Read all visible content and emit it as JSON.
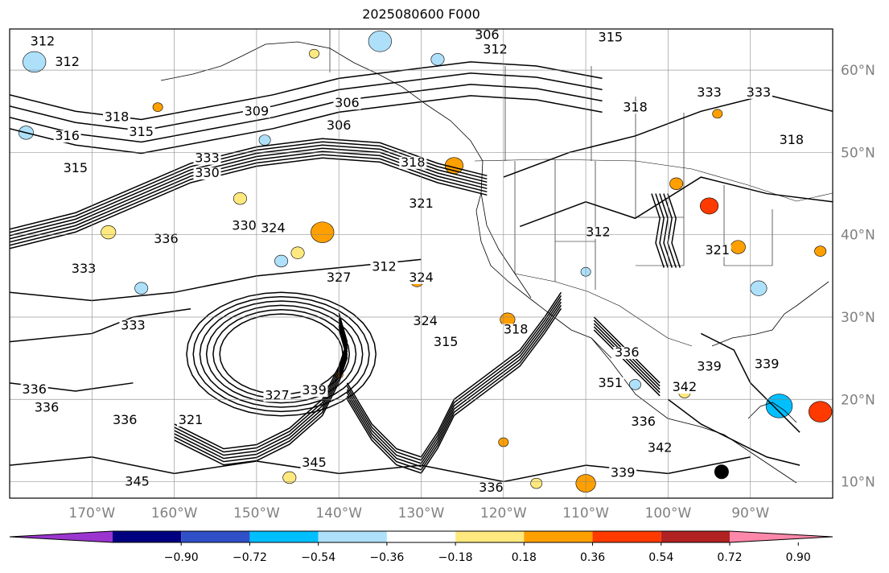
{
  "title": "2025080600 F000",
  "map": {
    "lon_range": [
      -180,
      -80
    ],
    "lat_range": [
      8,
      65
    ],
    "lat_ticks": [
      {
        "value": 10,
        "label": "10°N"
      },
      {
        "value": 20,
        "label": "20°N"
      },
      {
        "value": 30,
        "label": "30°N"
      },
      {
        "value": 40,
        "label": "40°N"
      },
      {
        "value": 50,
        "label": "50°N"
      },
      {
        "value": 60,
        "label": "60°N"
      }
    ],
    "lon_ticks": [
      {
        "value": -170,
        "label": "170°W"
      },
      {
        "value": -160,
        "label": "160°W"
      },
      {
        "value": -150,
        "label": "150°W"
      },
      {
        "value": -140,
        "label": "140°W"
      },
      {
        "value": -130,
        "label": "130°W"
      },
      {
        "value": -120,
        "label": "120°W"
      },
      {
        "value": -110,
        "label": "110°W"
      },
      {
        "value": -100,
        "label": "100°W"
      },
      {
        "value": -90,
        "label": "90°W"
      }
    ],
    "contour_labels": [
      {
        "text": "312",
        "lon": -176,
        "lat": 63
      },
      {
        "text": "312",
        "lon": -173,
        "lat": 60.5
      },
      {
        "text": "318",
        "lon": -167,
        "lat": 53.8
      },
      {
        "text": "315",
        "lon": -164,
        "lat": 52
      },
      {
        "text": "316",
        "lon": -173,
        "lat": 51.5
      },
      {
        "text": "315",
        "lon": -172,
        "lat": 47.6
      },
      {
        "text": "309",
        "lon": -150,
        "lat": 54.5
      },
      {
        "text": "306",
        "lon": -139,
        "lat": 55.5
      },
      {
        "text": "306",
        "lon": -140,
        "lat": 52.8
      },
      {
        "text": "318",
        "lon": -131,
        "lat": 48.3
      },
      {
        "text": "315",
        "lon": -107,
        "lat": 63.5
      },
      {
        "text": "312",
        "lon": -121,
        "lat": 62
      },
      {
        "text": "306",
        "lon": -122,
        "lat": 63.8
      },
      {
        "text": "318",
        "lon": -104,
        "lat": 55
      },
      {
        "text": "333",
        "lon": -95,
        "lat": 56.8
      },
      {
        "text": "333",
        "lon": -156,
        "lat": 48.8
      },
      {
        "text": "330",
        "lon": -156,
        "lat": 47
      },
      {
        "text": "330",
        "lon": -151.5,
        "lat": 40.6
      },
      {
        "text": "324",
        "lon": -148,
        "lat": 40.3
      },
      {
        "text": "336",
        "lon": -161,
        "lat": 39
      },
      {
        "text": "333",
        "lon": -171,
        "lat": 35.4
      },
      {
        "text": "321",
        "lon": -130,
        "lat": 43.3
      },
      {
        "text": "312",
        "lon": -134.5,
        "lat": 35.6
      },
      {
        "text": "324",
        "lon": -130,
        "lat": 34.3
      },
      {
        "text": "327",
        "lon": -140,
        "lat": 34.3
      },
      {
        "text": "324",
        "lon": -129.5,
        "lat": 29
      },
      {
        "text": "315",
        "lon": -127,
        "lat": 26.5
      },
      {
        "text": "333",
        "lon": -165,
        "lat": 28.5
      },
      {
        "text": "336",
        "lon": -177,
        "lat": 20.7
      },
      {
        "text": "336",
        "lon": -175.5,
        "lat": 18.5
      },
      {
        "text": "336",
        "lon": -166,
        "lat": 17
      },
      {
        "text": "321",
        "lon": -158,
        "lat": 17
      },
      {
        "text": "327",
        "lon": -147.5,
        "lat": 20
      },
      {
        "text": "339",
        "lon": -143,
        "lat": 20.6
      },
      {
        "text": "345",
        "lon": -143,
        "lat": 11.8
      },
      {
        "text": "345",
        "lon": -164.5,
        "lat": 9.5
      },
      {
        "text": "318",
        "lon": -118.5,
        "lat": 28
      },
      {
        "text": "336",
        "lon": -105,
        "lat": 25.2
      },
      {
        "text": "351",
        "lon": -107,
        "lat": 21.5
      },
      {
        "text": "339",
        "lon": -95,
        "lat": 23.5
      },
      {
        "text": "342",
        "lon": -98,
        "lat": 21
      },
      {
        "text": "339",
        "lon": -88,
        "lat": 23.8
      },
      {
        "text": "336",
        "lon": -103,
        "lat": 16.8
      },
      {
        "text": "342",
        "lon": -101,
        "lat": 13.6
      },
      {
        "text": "339",
        "lon": -105.5,
        "lat": 10.6
      },
      {
        "text": "336",
        "lon": -121.5,
        "lat": 8.8
      },
      {
        "text": "312",
        "lon": -108.5,
        "lat": 39.8
      },
      {
        "text": "321",
        "lon": -94,
        "lat": 37.6
      },
      {
        "text": "318",
        "lon": -85,
        "lat": 51
      },
      {
        "text": "333",
        "lon": -89,
        "lat": 56.8
      }
    ],
    "shaded_patches": [
      {
        "lon": -142,
        "lat": 40.3,
        "r": 1.4,
        "value": 0.36
      },
      {
        "lon": -126,
        "lat": 48.4,
        "r": 1.1,
        "value": 0.36
      },
      {
        "lon": -130.5,
        "lat": 34.4,
        "r": 0.8,
        "value": 0.36
      },
      {
        "lon": -119.5,
        "lat": 29.7,
        "r": 0.9,
        "value": 0.36
      },
      {
        "lon": -145,
        "lat": 37.8,
        "r": 0.8,
        "value": 0.18
      },
      {
        "lon": -168,
        "lat": 40.3,
        "r": 0.9,
        "value": 0.18
      },
      {
        "lon": -152,
        "lat": 44.4,
        "r": 0.8,
        "value": 0.18
      },
      {
        "lon": -110,
        "lat": 9.8,
        "r": 1.2,
        "value": 0.36
      },
      {
        "lon": -120,
        "lat": 14.8,
        "r": 0.6,
        "value": 0.36
      },
      {
        "lon": -116,
        "lat": 9.8,
        "r": 0.7,
        "value": 0.18
      },
      {
        "lon": -146,
        "lat": 10.5,
        "r": 0.8,
        "value": 0.18
      },
      {
        "lon": -177,
        "lat": 61,
        "r": 1.4,
        "value": -0.36
      },
      {
        "lon": -178,
        "lat": 52.4,
        "r": 0.9,
        "value": -0.36
      },
      {
        "lon": -164,
        "lat": 33.5,
        "r": 0.8,
        "value": -0.36
      },
      {
        "lon": -147,
        "lat": 36.8,
        "r": 0.8,
        "value": -0.36
      },
      {
        "lon": -135,
        "lat": 63.5,
        "r": 1.4,
        "value": -0.36
      },
      {
        "lon": -128,
        "lat": 61.3,
        "r": 0.8,
        "value": -0.36
      },
      {
        "lon": -89,
        "lat": 33.5,
        "r": 1.0,
        "value": -0.36
      },
      {
        "lon": -86.5,
        "lat": 19.2,
        "r": 1.6,
        "value": -0.54
      },
      {
        "lon": -81.5,
        "lat": 18.5,
        "r": 1.4,
        "value": 0.54
      },
      {
        "lon": -95,
        "lat": 43.5,
        "r": 1.1,
        "value": 0.54
      },
      {
        "lon": -91.5,
        "lat": 38.5,
        "r": 0.9,
        "value": 0.36
      },
      {
        "lon": -81.5,
        "lat": 38,
        "r": 0.7,
        "value": 0.36
      },
      {
        "lon": -99,
        "lat": 46.2,
        "r": 0.8,
        "value": 0.36
      },
      {
        "lon": -94,
        "lat": 54.7,
        "r": 0.6,
        "value": 0.36
      },
      {
        "lon": -98,
        "lat": 20.8,
        "r": 0.7,
        "value": 0.18
      },
      {
        "lon": -162,
        "lat": 55.5,
        "r": 0.6,
        "value": 0.36
      },
      {
        "lon": -149,
        "lat": 51.5,
        "r": 0.7,
        "value": -0.36
      },
      {
        "lon": -143,
        "lat": 62,
        "r": 0.6,
        "value": 0.18
      },
      {
        "lon": -104,
        "lat": 21.8,
        "r": 0.7,
        "value": -0.36
      },
      {
        "lon": -140,
        "lat": 23,
        "r": 0.5,
        "value": 0.36
      },
      {
        "lon": -110,
        "lat": 35.5,
        "r": 0.6,
        "value": -0.36
      }
    ],
    "marker": {
      "lon": -93.5,
      "lat": 11.2
    }
  },
  "colorbar": {
    "colors": [
      "#9b35cf",
      "#000080",
      "#3050c8",
      "#00bfff",
      "#aee0fa",
      "#ffffff",
      "#ffe97f",
      "#ffa000",
      "#ff3a00",
      "#b22222",
      "#ff88aa"
    ],
    "ticks": [
      "−0.90",
      "−0.72",
      "−0.54",
      "−0.36",
      "−0.18",
      "0.18",
      "0.36",
      "0.54",
      "0.72",
      "0.90"
    ],
    "levels": [
      -0.9,
      -0.72,
      -0.54,
      -0.36,
      -0.18,
      0.18,
      0.36,
      0.54,
      0.72,
      0.9
    ]
  }
}
